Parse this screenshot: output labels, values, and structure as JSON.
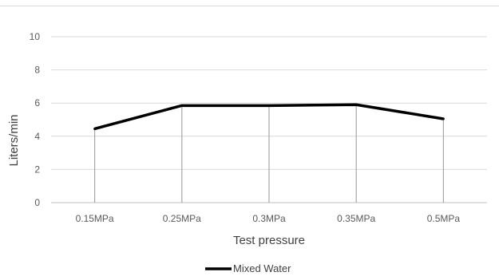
{
  "chart_data": {
    "type": "line",
    "title": "",
    "xlabel": "Test pressure",
    "ylabel": "Liters/min",
    "categories": [
      "0.15MPa",
      "0.25MPa",
      "0.3MPa",
      "0.35MPa",
      "0.5MPa"
    ],
    "yticks": [
      "0",
      "2",
      "4",
      "6",
      "8",
      "10"
    ],
    "ylim": [
      0,
      10
    ],
    "grid": true,
    "drop_lines": true,
    "legend_position": "bottom",
    "series": [
      {
        "name": "Mixed Water",
        "values": [
          4.45,
          5.85,
          5.85,
          5.9,
          5.05
        ],
        "color": "#000000"
      }
    ]
  }
}
